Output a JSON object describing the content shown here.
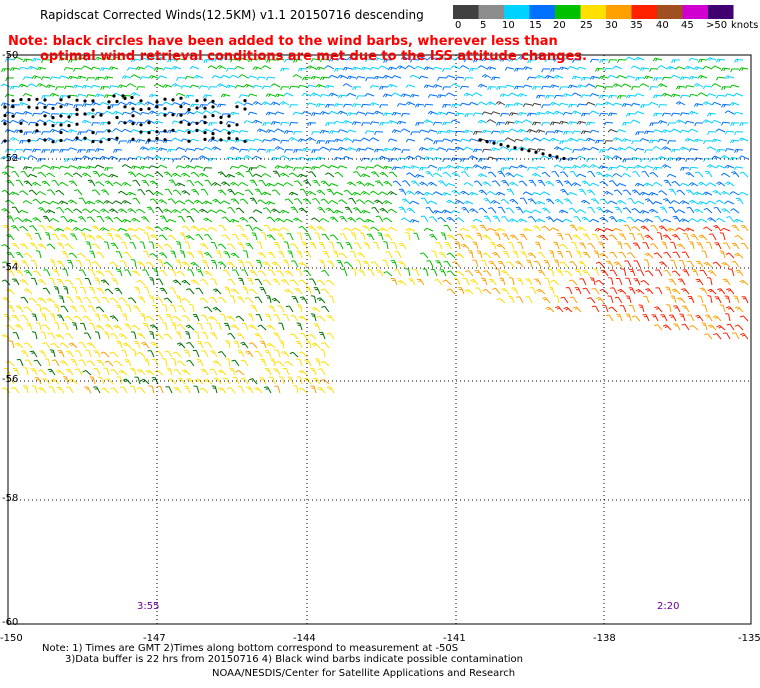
{
  "title": "Rapidscat Corrected Winds(12.5KM) v1.1 20150716 descending",
  "note_line1": "Note: black circles have been added to the wind barbs, wherever less than",
  "note_line2": "optimal wind retrieval conditions are met due to the ISS attitude changes.",
  "legend": {
    "labels": [
      "0",
      "5",
      "10",
      "15",
      "20",
      "25",
      "30",
      "35",
      "40",
      "45",
      ">50"
    ],
    "unit": "knots",
    "colors": [
      "#404040",
      "#8c8c8c",
      "#00d2ff",
      "#0070ff",
      "#00c000",
      "#ffe000",
      "#ffa000",
      "#ff2000",
      "#a05020",
      "#d000d0",
      "#400070"
    ]
  },
  "lat_labels": [
    "-50",
    "-52",
    "-54",
    "-56",
    "-58",
    "-60"
  ],
  "lon_labels": [
    "-150",
    "-147",
    "-144",
    "-141",
    "-138",
    "-135"
  ],
  "pass_times": [
    "3:55",
    "2:20"
  ],
  "footnote_line1": "Note: 1) Times are GMT 2)Times along bottom correspond to measurement at -50S",
  "footnote_line2": "3)Data buffer is 22 hrs from 20150716 4) Black wind barbs indicate possible contamination",
  "credit": "NOAA/NESDIS/Center for Satellite Applications and Research"
}
